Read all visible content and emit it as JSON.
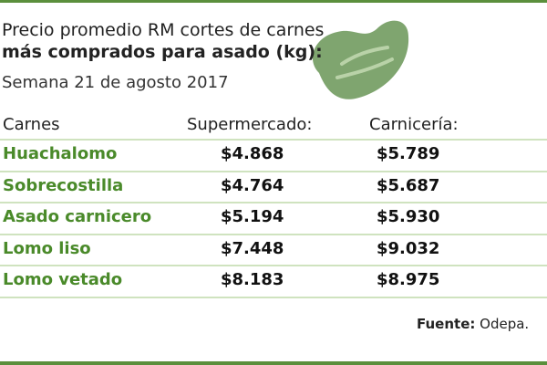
{
  "header": {
    "title": [
      "Precio promedio RM cortes de carnes",
      "más comprados para asado (kg):"
    ],
    "subtitle": "Semana 21 de agosto 2017"
  },
  "table": {
    "columns": [
      "Carnes",
      "Supermercado:",
      "Carnicería:"
    ],
    "rows": [
      [
        "Huachalomo",
        "$4.868",
        "$5.789"
      ],
      [
        "Sobrecostilla",
        "$4.764",
        "$5.687"
      ],
      [
        "Asado carnicero",
        "$5.194",
        "$5.930"
      ],
      [
        "Lomo liso",
        "$7.448",
        "$9.032"
      ],
      [
        "Lomo vetado",
        "$8.183",
        "$8.975"
      ]
    ]
  },
  "footer": {
    "label": "Fuente:",
    "source": "Odepa."
  }
}
